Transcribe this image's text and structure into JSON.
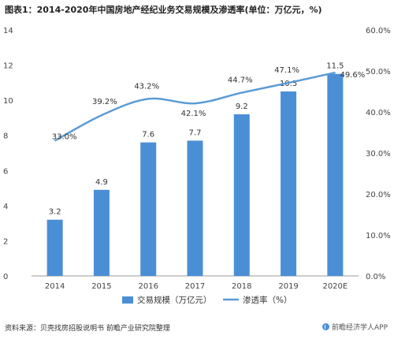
{
  "source": "资料来源：贝壳找房招股说明书 前瞻产业研究院整理",
  "brand": "前瞻经济学人APP",
  "chart_data": {
    "type": "bar+line",
    "title": "图表1：2014-2020年中国房地产经纪业务交易规模及渗透率(单位：万亿元，%)",
    "categories": [
      "2014",
      "2015",
      "2016",
      "2017",
      "2018",
      "2019",
      "2020E"
    ],
    "series": [
      {
        "name": "交易规模（万亿元）",
        "type": "bar",
        "axis": "left",
        "color": "#4a8fd6",
        "values": [
          3.2,
          4.9,
          7.6,
          7.7,
          9.2,
          10.5,
          11.5
        ],
        "labels": [
          "3.2",
          "4.9",
          "7.6",
          "7.7",
          "9.2",
          "10.5",
          "11.5"
        ]
      },
      {
        "name": "渗透率（%）",
        "type": "line",
        "axis": "right",
        "color": "#5b9bd5",
        "values": [
          33.0,
          39.2,
          43.2,
          42.1,
          44.7,
          47.1,
          49.6
        ],
        "labels": [
          "33.0%",
          "39.2%",
          "43.2%",
          "42.1%",
          "44.7%",
          "47.1%",
          "49.6%"
        ]
      }
    ],
    "y_left": {
      "min": 0,
      "max": 14,
      "ticks": [
        "0",
        "2",
        "4",
        "6",
        "8",
        "10",
        "12",
        "14"
      ]
    },
    "y_right": {
      "min": 0,
      "max": 60,
      "ticks": [
        "0.0%",
        "10.0%",
        "20.0%",
        "30.0%",
        "40.0%",
        "50.0%",
        "60.0%"
      ]
    },
    "grid": false,
    "legend_position": "bottom"
  }
}
